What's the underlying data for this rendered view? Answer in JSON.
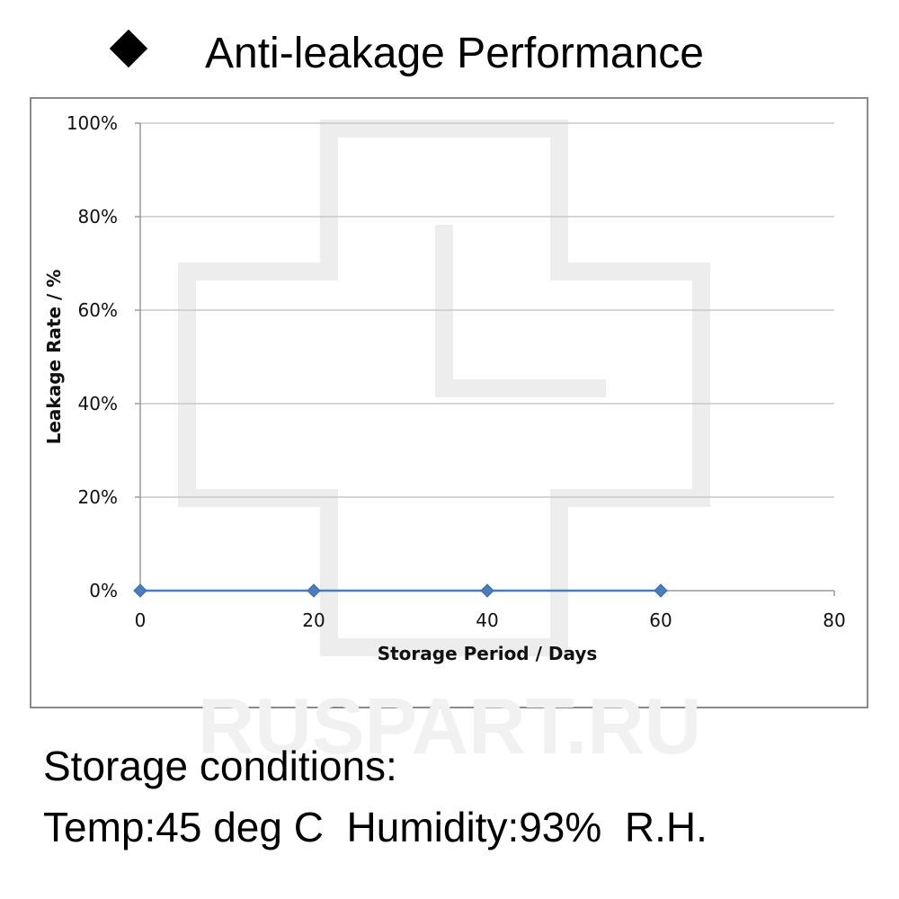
{
  "header": {
    "title": "Anti-leakage Performance",
    "bullet_icon": "diamond-bullet-icon"
  },
  "watermark": {
    "text": "RUSPART.RU"
  },
  "conditions": {
    "line1": "Storage conditions:",
    "line2": "Temp:45 deg C  Humidity:93%  R.H."
  },
  "chart_data": {
    "type": "line",
    "title": "",
    "xlabel": "Storage Period / Days",
    "ylabel": "Leakage Rate / %",
    "xlim": [
      0,
      80
    ],
    "ylim": [
      0,
      100
    ],
    "x_ticks": [
      0,
      20,
      40,
      60,
      80
    ],
    "y_ticks": [
      0,
      20,
      40,
      60,
      80,
      100
    ],
    "y_tick_labels": [
      "0%",
      "20%",
      "40%",
      "60%",
      "80%",
      "100%"
    ],
    "grid": true,
    "legend": "none",
    "series": [
      {
        "x": [
          0,
          20,
          40,
          60
        ],
        "y": [
          0,
          0,
          0,
          0
        ],
        "color": "#4a7ebb",
        "marker": "diamond"
      }
    ],
    "colors": {
      "line": "#4a7ebb",
      "grid": "#c8c8c8",
      "axis": "#9a9a9a"
    }
  }
}
